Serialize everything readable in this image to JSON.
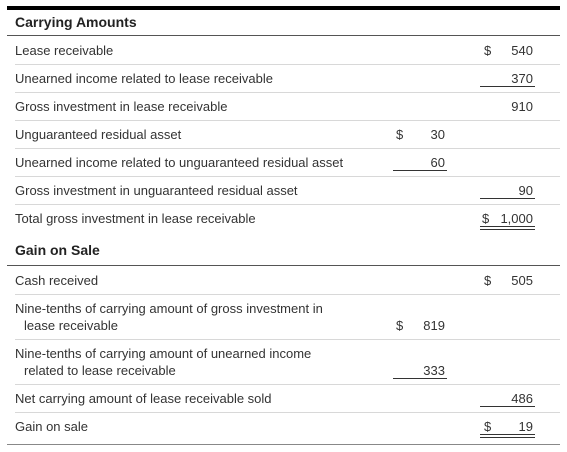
{
  "carrying": {
    "title": "Carrying Amounts",
    "rows": [
      {
        "label": "Lease receivable",
        "currency": "$",
        "value": "540"
      },
      {
        "label": "Unearned income related to lease receivable",
        "value": "370"
      },
      {
        "label": "Gross investment in lease receivable",
        "value": "910"
      },
      {
        "label": "Unguaranteed residual asset",
        "currency": "$",
        "value": "30"
      },
      {
        "label": "Unearned income related to unguaranteed residual asset",
        "value": "60"
      },
      {
        "label": "Gross investment in unguaranteed residual asset",
        "value": "90"
      },
      {
        "label": "Total gross investment in lease receivable",
        "currency": "$",
        "value": "1,000"
      }
    ]
  },
  "gain": {
    "title": "Gain on Sale",
    "rows": [
      {
        "label": "Cash received",
        "currency": "$",
        "value": "505"
      },
      {
        "label_line1": "Nine-tenths of carrying amount of gross investment in",
        "label_line2": "lease receivable",
        "currency": "$",
        "value": "819"
      },
      {
        "label_line1": "Nine-tenths of carrying amount of unearned income",
        "label_line2": "related to lease receivable",
        "value": "333"
      },
      {
        "label": "Net carrying amount of lease receivable sold",
        "value": "486"
      },
      {
        "label": "Gain on sale",
        "currency": "$",
        "value": "19"
      }
    ]
  }
}
